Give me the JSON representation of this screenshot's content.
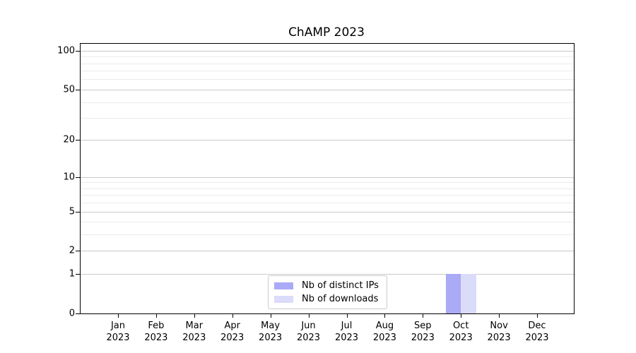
{
  "chart_data": {
    "type": "bar",
    "title": "ChAMP 2023",
    "categories": [
      "Jan 2023",
      "Feb 2023",
      "Mar 2023",
      "Apr 2023",
      "May 2023",
      "Jun 2023",
      "Jul 2023",
      "Aug 2023",
      "Sep 2023",
      "Oct 2023",
      "Nov 2023",
      "Dec 2023"
    ],
    "series": [
      {
        "name": "Nb of distinct IPs",
        "color": "#aaaaf6",
        "values": [
          0,
          0,
          0,
          0,
          0,
          0,
          0,
          0,
          0,
          1,
          0,
          0
        ]
      },
      {
        "name": "Nb of downloads",
        "color": "#dbdbfa",
        "values": [
          0,
          0,
          0,
          0,
          0,
          0,
          0,
          0,
          0,
          1,
          0,
          0
        ]
      }
    ],
    "xlabel": "",
    "ylabel": "",
    "yscale": "log1p",
    "ylim": [
      0,
      113
    ],
    "yticks": [
      0,
      1,
      2,
      5,
      10,
      20,
      50,
      100
    ],
    "minor_yticks": [
      3,
      4,
      6,
      7,
      8,
      9,
      30,
      40,
      60,
      70,
      80,
      90
    ],
    "grid": "horizontal",
    "legend_position": "lower center",
    "colors": {
      "major_grid": "#c9c9c9",
      "minor_grid": "#ececec",
      "axis": "#000000",
      "background": "#ffffff"
    }
  }
}
